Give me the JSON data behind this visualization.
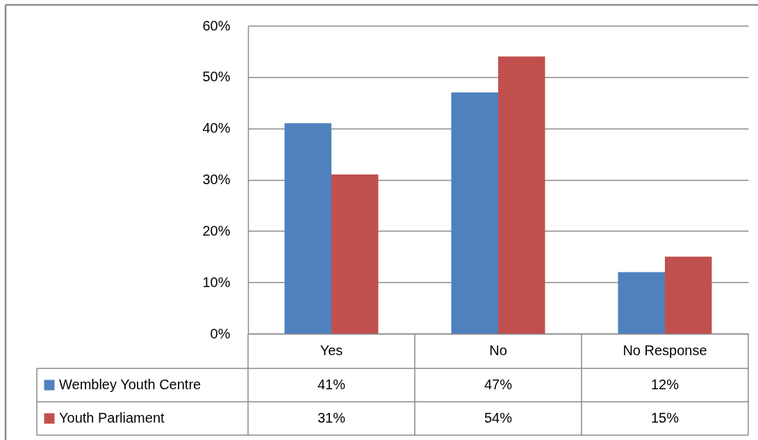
{
  "chart_data": {
    "type": "bar",
    "categories": [
      "Yes",
      "No",
      "No Response"
    ],
    "series": [
      {
        "name": "Wembley Youth Centre",
        "color": "#4f81bd",
        "values": [
          41,
          47,
          12
        ],
        "value_labels": [
          "41%",
          "47%",
          "12%"
        ]
      },
      {
        "name": "Youth Parliament",
        "color": "#c0504d",
        "values": [
          31,
          54,
          15
        ],
        "value_labels": [
          "31%",
          "54%",
          "15%"
        ]
      }
    ],
    "ylim": [
      0,
      60
    ],
    "yticks": [
      {
        "value": 0,
        "label": "0%"
      },
      {
        "value": 10,
        "label": "10%"
      },
      {
        "value": 20,
        "label": "20%"
      },
      {
        "value": 30,
        "label": "30%"
      },
      {
        "value": 40,
        "label": "40%"
      },
      {
        "value": 50,
        "label": "50%"
      },
      {
        "value": 60,
        "label": "60%"
      }
    ],
    "grid": "y",
    "legend": "bottom left"
  }
}
